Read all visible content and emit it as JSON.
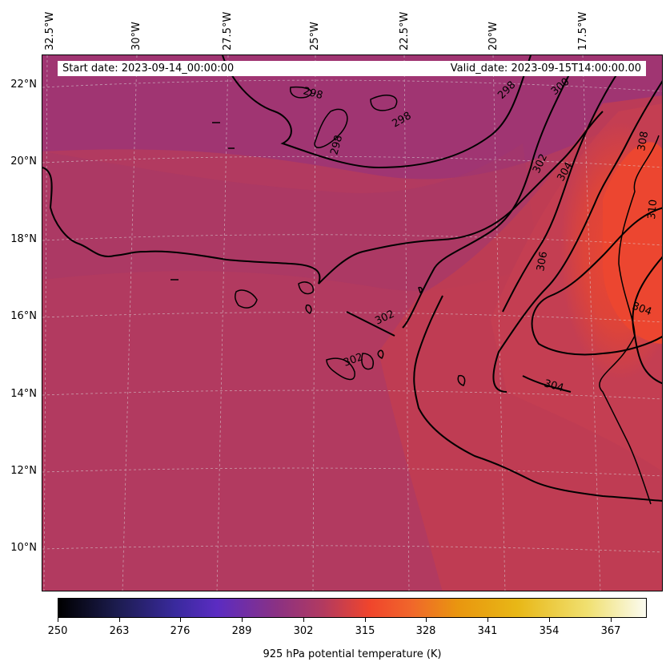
{
  "map": {
    "longitude_labels": [
      "32.5°W",
      "30°W",
      "27.5°W",
      "25°W",
      "22.5°W",
      "20°W",
      "17.5°W"
    ],
    "latitude_labels": [
      "22°N",
      "20°N",
      "18°N",
      "16°N",
      "14°N",
      "12°N",
      "10°N"
    ],
    "start_date": "Start date: 2023-09-14_00:00:00",
    "valid_date": "Valid_date: 2023-09-15T14:00:00.00",
    "contour_labels": [
      "298",
      "298",
      "298",
      "298",
      "300",
      "302",
      "302",
      "302",
      "304",
      "304",
      "304",
      "306",
      "308",
      "310"
    ],
    "colors": {
      "background_field": "#b23a60",
      "cool_region": "#9a3478",
      "warm_region": "#e8452f",
      "contour": "#000000"
    }
  },
  "colorbar": {
    "ticks": [
      "250",
      "263",
      "276",
      "289",
      "302",
      "315",
      "328",
      "341",
      "354",
      "367"
    ],
    "label": "925 hPa potential temperature (K)"
  }
}
